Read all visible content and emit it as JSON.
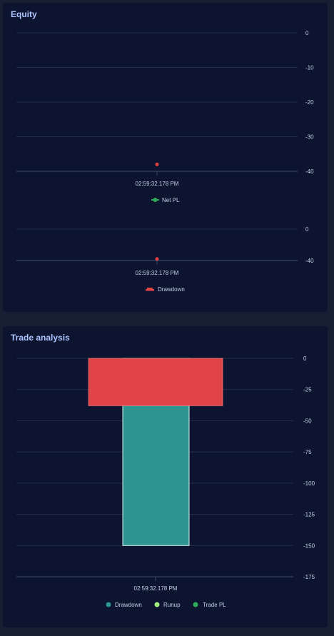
{
  "panels": {
    "equity_title": "Equity",
    "trade_title": "Trade analysis"
  },
  "colors": {
    "net_pl": "#2eaa57",
    "drawdown_red": "#e04448",
    "drawdown_teal": "#2e9490",
    "runup": "#a3ee82",
    "trade_pl": "#2eaa57"
  },
  "chart_data": [
    {
      "type": "line",
      "x": [
        "02:59:32.178 PM"
      ],
      "series": [
        {
          "name": "Net PL",
          "values": [
            -38
          ]
        }
      ],
      "yticks": [
        "0",
        "-10",
        "-20",
        "-30",
        "-40"
      ],
      "ylim": [
        -40,
        0
      ],
      "grid": true,
      "legend": "bottom"
    },
    {
      "type": "line",
      "x": [
        "02:59:32.178 PM"
      ],
      "series": [
        {
          "name": "Drawdown",
          "values": [
            -38
          ]
        }
      ],
      "yticks": [
        "0",
        "-40"
      ],
      "ylim": [
        -40,
        0
      ],
      "grid": true,
      "legend": "bottom"
    },
    {
      "type": "bar",
      "categories": [
        "02:59:32.178 PM"
      ],
      "series": [
        {
          "name": "Drawdown",
          "values": [
            -150
          ]
        },
        {
          "name": "Runup",
          "values": [
            0
          ]
        },
        {
          "name": "Trade PL",
          "values": [
            -38
          ]
        }
      ],
      "yticks": [
        "0",
        "-25",
        "-50",
        "-75",
        "-100",
        "-125",
        "-150",
        "-175"
      ],
      "ylim": [
        -175,
        0
      ],
      "grid": true,
      "legend": "bottom"
    }
  ]
}
